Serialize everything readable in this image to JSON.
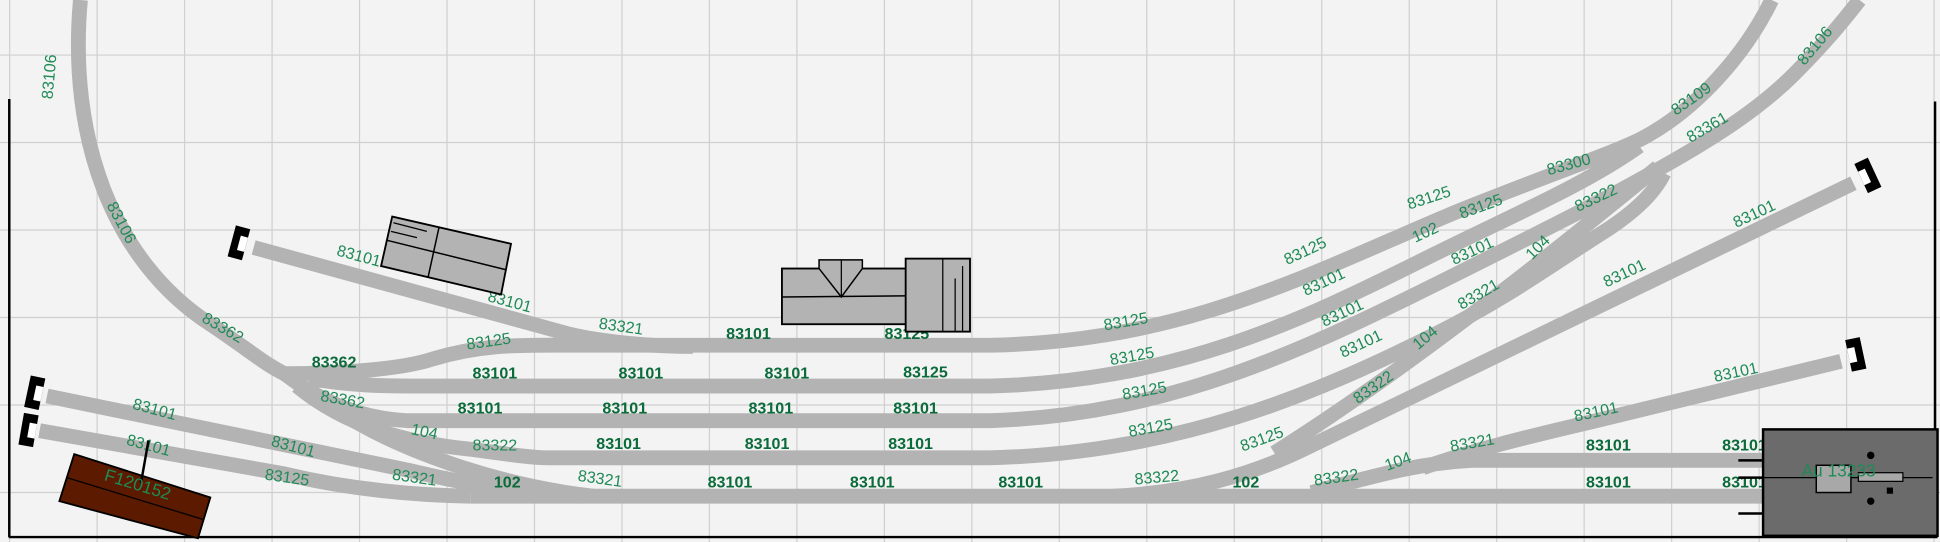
{
  "colors": {
    "background": "#f3f3f3",
    "track": "#b3b3b3",
    "label": "#1f8a55",
    "grid": "#d0d0d0",
    "wagon": "#5c1a00",
    "transformer_box": "#6b6b6b"
  },
  "labels": [
    "83106",
    "83106",
    "83362",
    "83101",
    "83101",
    "83321",
    "83101",
    "83125",
    "83125",
    "83362",
    "83101",
    "83101",
    "83101",
    "83125",
    "83362",
    "83101",
    "83101",
    "83101",
    "83101",
    "104",
    "83322",
    "83101",
    "83101",
    "83101",
    "83101",
    "83101",
    "83101",
    "83125",
    "83321",
    "102",
    "83321",
    "83101",
    "83101",
    "83101",
    "83125",
    "83125",
    "83125",
    "83125",
    "83322",
    "83125",
    "102",
    "83322",
    "104",
    "83321",
    "83101",
    "83101",
    "83101",
    "83101",
    "83101",
    "83101",
    "83322",
    "104",
    "83101",
    "83101",
    "83101",
    "83125",
    "83321",
    "104",
    "83101",
    "102",
    "83125",
    "83125",
    "83322",
    "83300",
    "83361",
    "83109",
    "83106",
    "83101",
    "83101"
  ],
  "objects": {
    "wagon_label": "F120152",
    "box_label": "Au 13233",
    "buffer_icon": "buffer-stop-icon",
    "buildings": [
      "building-station",
      "building-warehouse"
    ]
  }
}
